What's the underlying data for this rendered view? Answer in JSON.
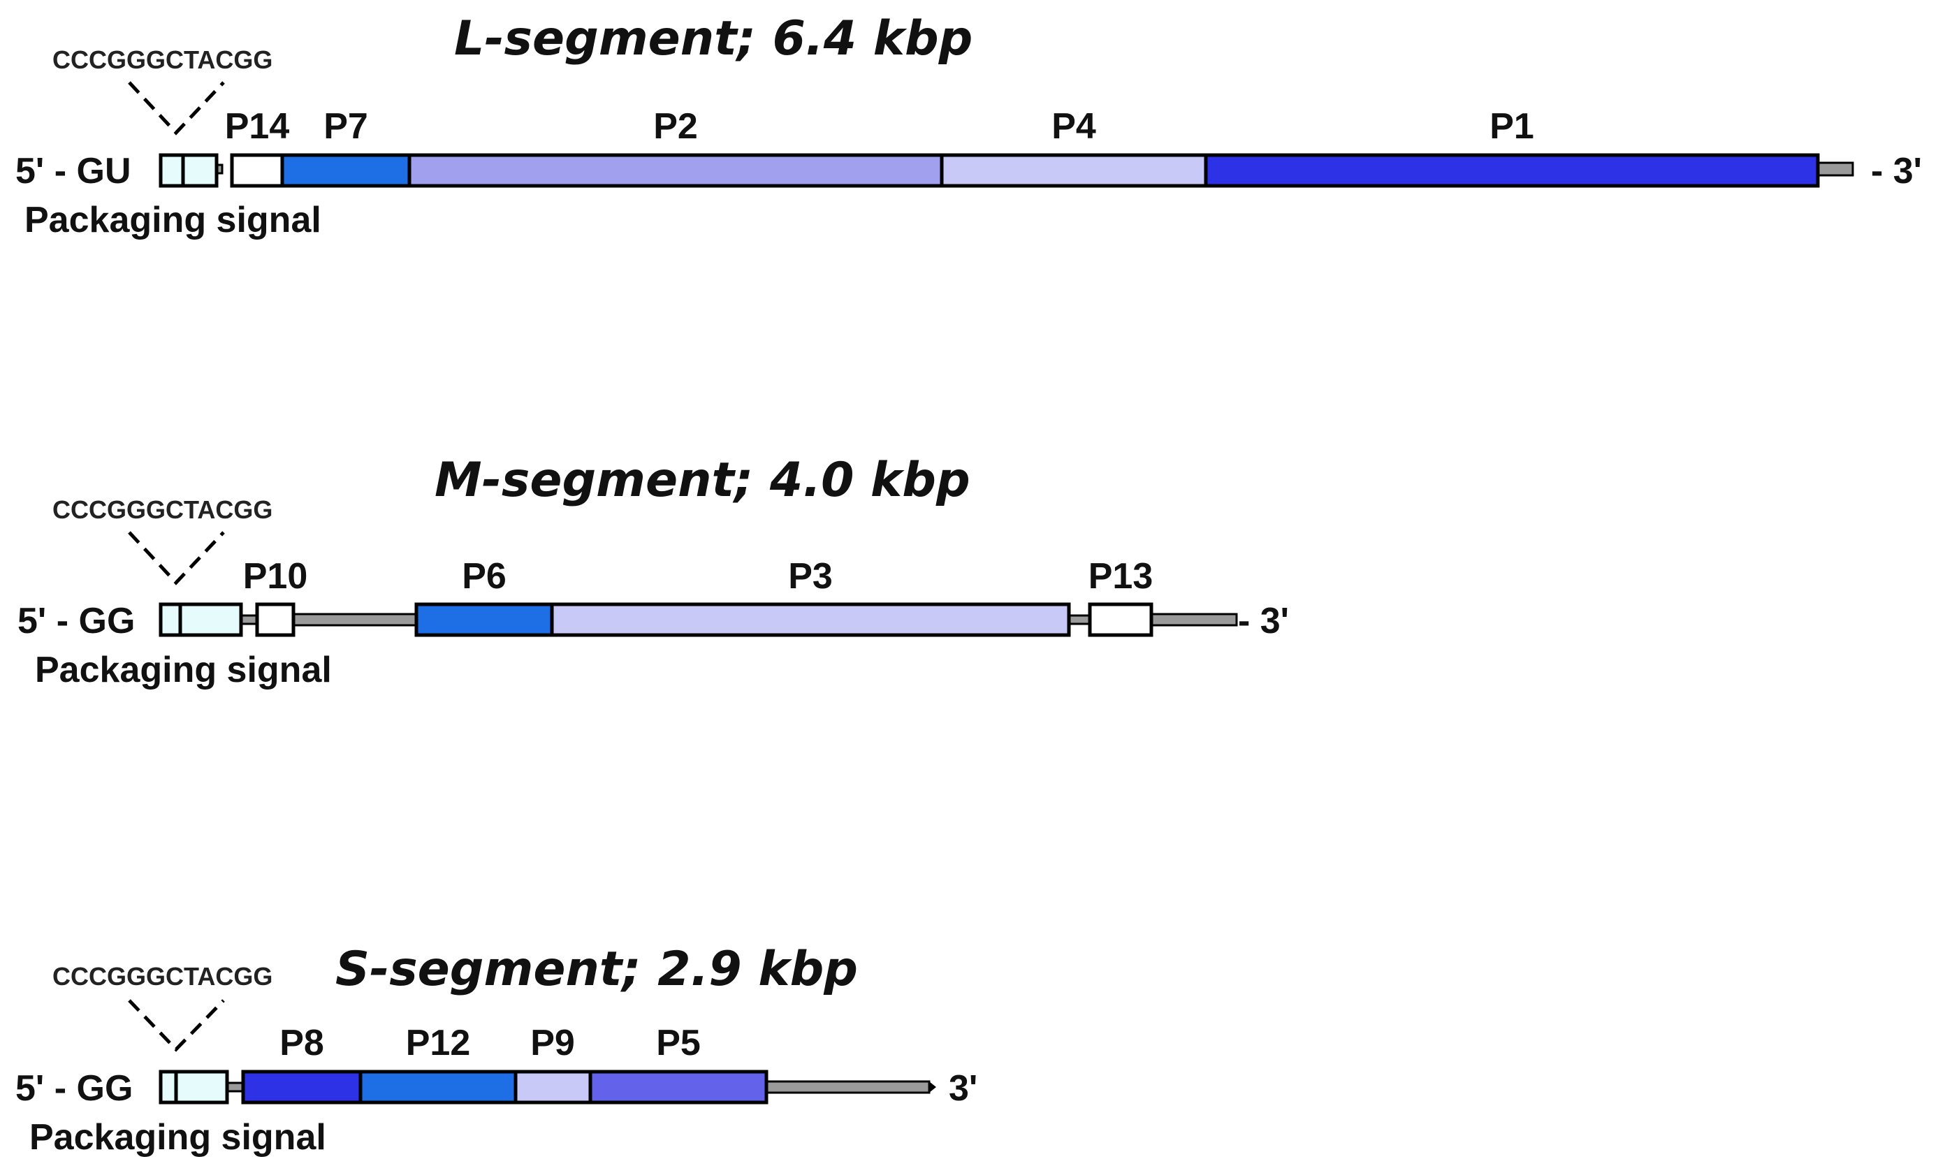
{
  "colors": {
    "white": "#ffffff",
    "pale_cyan": "#e6fbfb",
    "lavender": "#c9c9f7",
    "periwinkle": "#a0a0ee",
    "medium_blue": "#1e6fe6",
    "royal_blue": "#2d32e6",
    "violet_blue": "#6262ea",
    "backbone_gray": "#9a9a9a"
  },
  "segments": [
    {
      "id": "L",
      "title": "L-segment; 6.4 kbp",
      "five_prime": "5' - GU",
      "three_prime": "- 3'",
      "seq": "CCCGGGCTACGG",
      "packaging_label": "Packaging signal",
      "genes": [
        {
          "label": "P14",
          "color": "white"
        },
        {
          "label": "P7",
          "color": "medium_blue"
        },
        {
          "label": "P2",
          "color": "periwinkle"
        },
        {
          "label": "P4",
          "color": "lavender"
        },
        {
          "label": "P1",
          "color": "royal_blue"
        }
      ]
    },
    {
      "id": "M",
      "title": "M-segment; 4.0 kbp",
      "five_prime": "5' - GG",
      "three_prime": "- 3'",
      "seq": "CCCGGGCTACGG",
      "packaging_label": "Packaging signal",
      "genes": [
        {
          "label": "P10",
          "color": "white"
        },
        {
          "label": "P6",
          "color": "medium_blue"
        },
        {
          "label": "P3",
          "color": "lavender"
        },
        {
          "label": "P13",
          "color": "white"
        }
      ]
    },
    {
      "id": "S",
      "title": "S-segment; 2.9 kbp",
      "five_prime": "5' - GG",
      "three_prime": "3'",
      "seq": "CCCGGGCTACGG",
      "packaging_label": "Packaging signal",
      "genes": [
        {
          "label": "P8",
          "color": "royal_blue"
        },
        {
          "label": "P12",
          "color": "medium_blue"
        },
        {
          "label": "P9",
          "color": "lavender"
        },
        {
          "label": "P5",
          "color": "violet_blue"
        }
      ]
    }
  ]
}
